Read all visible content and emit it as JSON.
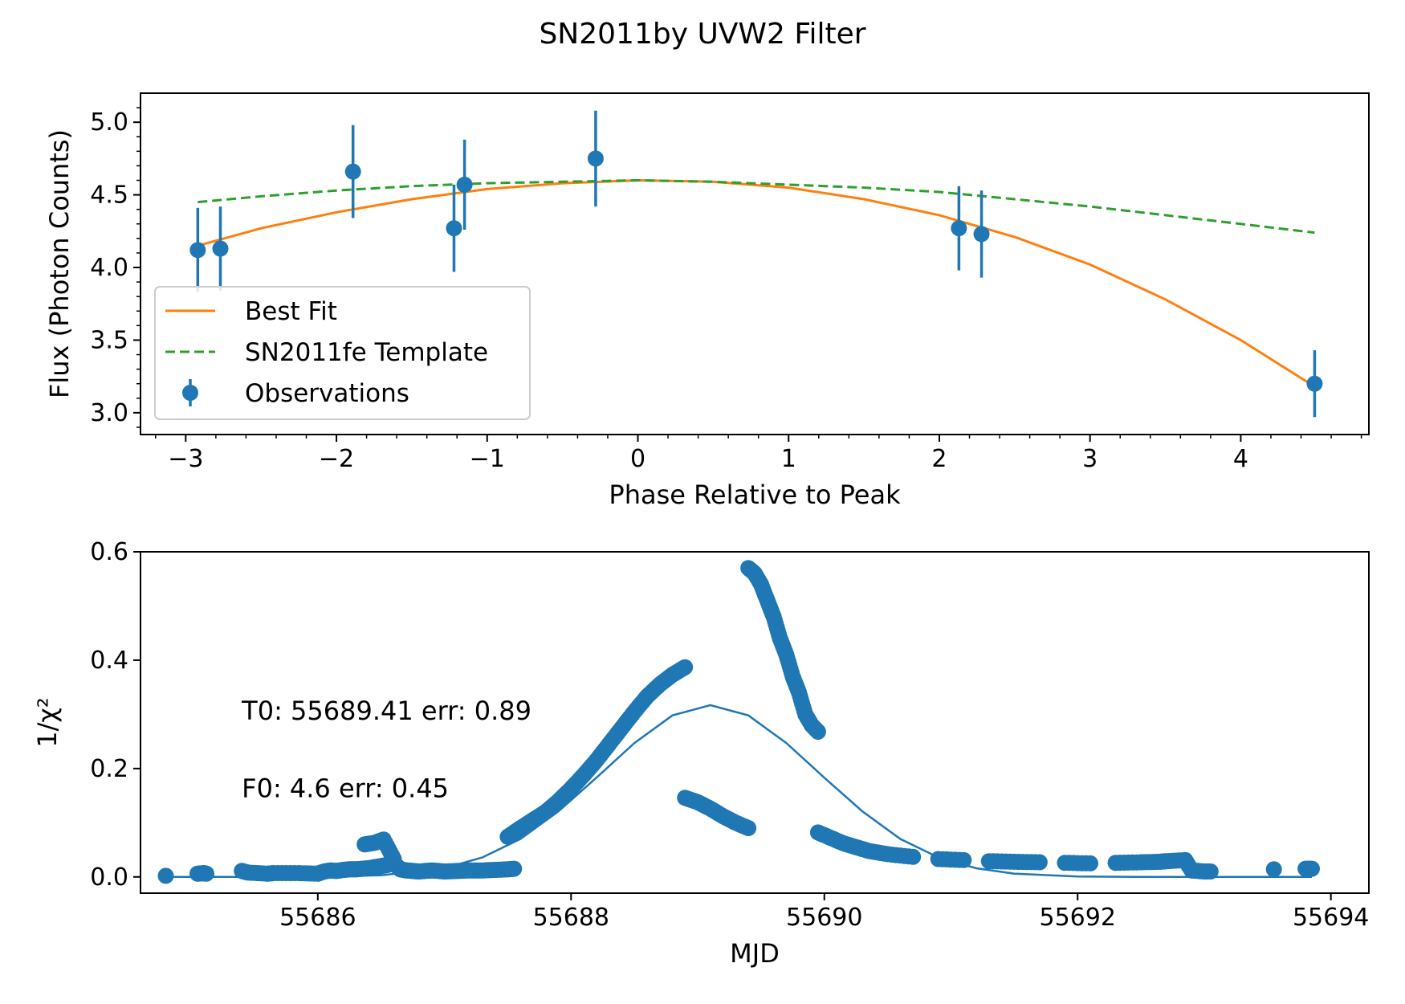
{
  "title": "SN2011by UVW2 Filter",
  "colors": {
    "observations": "#1f77b4",
    "best_fit": "#ff7f0e",
    "template": "#2ca02c",
    "scan": "#1f77b4"
  },
  "chart_data": [
    {
      "type": "scatter",
      "xlabel": "Phase Relative to Peak",
      "ylabel": "Flux (Photon Counts)",
      "xlim": [
        -3.3,
        4.85
      ],
      "ylim": [
        2.85,
        5.2
      ],
      "xticks": [
        -3,
        -2,
        -1,
        0,
        1,
        2,
        3,
        4
      ],
      "xtick_labels": [
        "−3",
        "−2",
        "−1",
        "0",
        "1",
        "2",
        "3",
        "4"
      ],
      "yticks": [
        3.0,
        3.5,
        4.0,
        4.5,
        5.0
      ],
      "ytick_labels": [
        "3.0",
        "3.5",
        "4.0",
        "4.5",
        "5.0"
      ],
      "legend_position": "lower-left",
      "legend": [
        {
          "label": "Best Fit",
          "style": "solid",
          "color": "#ff7f0e"
        },
        {
          "label": "SN2011fe Template",
          "style": "dashed",
          "color": "#2ca02c"
        },
        {
          "label": "Observations",
          "style": "errorbar",
          "color": "#1f77b4"
        }
      ],
      "series": [
        {
          "name": "Observations",
          "kind": "errorbar",
          "x": [
            -2.92,
            -2.77,
            -1.89,
            -1.22,
            -1.15,
            -0.28,
            2.13,
            2.28,
            4.49
          ],
          "y": [
            4.12,
            4.13,
            4.66,
            4.27,
            4.57,
            4.75,
            4.27,
            4.23,
            3.2
          ],
          "yerr": [
            0.29,
            0.29,
            0.32,
            0.3,
            0.31,
            0.33,
            0.29,
            0.3,
            0.23
          ]
        },
        {
          "name": "Best Fit",
          "kind": "line",
          "style": "solid",
          "x": [
            -2.92,
            -2.5,
            -2.0,
            -1.5,
            -1.0,
            -0.5,
            0.0,
            0.5,
            1.0,
            1.5,
            2.0,
            2.5,
            3.0,
            3.5,
            4.0,
            4.49
          ],
          "y": [
            4.15,
            4.27,
            4.38,
            4.47,
            4.54,
            4.58,
            4.6,
            4.59,
            4.55,
            4.47,
            4.36,
            4.21,
            4.02,
            3.78,
            3.5,
            3.18
          ]
        },
        {
          "name": "SN2011fe Template",
          "kind": "line",
          "style": "dashed",
          "x": [
            -2.92,
            -2.5,
            -2.0,
            -1.5,
            -1.0,
            -0.5,
            0.0,
            0.5,
            1.0,
            1.5,
            2.0,
            2.5,
            3.0,
            3.5,
            4.0,
            4.49
          ],
          "y": [
            4.45,
            4.49,
            4.53,
            4.56,
            4.58,
            4.59,
            4.6,
            4.59,
            4.57,
            4.55,
            4.52,
            4.47,
            4.42,
            4.36,
            4.3,
            4.24
          ]
        }
      ]
    },
    {
      "type": "scatter",
      "xlabel": "MJD",
      "ylabel": "1/χ²",
      "xlim": [
        55684.6,
        55694.3
      ],
      "ylim": [
        -0.03,
        0.6
      ],
      "xticks": [
        55686,
        55688,
        55690,
        55692,
        55694
      ],
      "xtick_labels": [
        "55686",
        "55688",
        "55690",
        "55692",
        "55694"
      ],
      "yticks": [
        0.0,
        0.2,
        0.4,
        0.6
      ],
      "ytick_labels": [
        "0.0",
        "0.2",
        "0.4",
        "0.6"
      ],
      "annotations": [
        {
          "text": "T0: 55689.41 err: 0.89",
          "x": 55685.4,
          "y": 0.29
        },
        {
          "text": "F0: 4.6 err: 0.45",
          "x": 55685.4,
          "y": 0.147
        }
      ],
      "series": [
        {
          "name": "scan",
          "kind": "scatter",
          "x": [
            55684.8,
            55685.05,
            55685.1,
            55685.12,
            55685.4,
            55685.45,
            55685.6,
            55685.65,
            55685.85,
            55686.0,
            55686.05,
            55686.1,
            55686.15,
            55686.2,
            55686.25,
            55686.3,
            55686.35,
            55686.4,
            55686.45,
            55686.5,
            55686.55,
            55686.6,
            55686.65,
            55686.7,
            55686.75,
            55686.8,
            55686.9,
            55687.0,
            55687.1,
            55687.2,
            55687.3,
            55687.4,
            55687.5,
            55687.55,
            55686.37,
            55686.45,
            55686.52,
            55686.6,
            55687.5,
            55687.6,
            55687.7,
            55687.8,
            55687.9,
            55688.0,
            55688.1,
            55688.2,
            55688.3,
            55688.4,
            55688.5,
            55688.6,
            55688.7,
            55688.8,
            55688.9,
            55689.4,
            55689.45,
            55689.5,
            55689.55,
            55689.6,
            55689.65,
            55689.7,
            55689.75,
            55689.8,
            55689.85,
            55689.9,
            55689.95,
            55688.9,
            55689.0,
            55689.1,
            55689.2,
            55689.3,
            55689.4,
            55689.95,
            55690.05,
            55690.15,
            55690.25,
            55690.35,
            55690.5,
            55690.7,
            55690.9,
            55691.1,
            55691.3,
            55691.5,
            55691.7,
            55691.9,
            55692.1,
            55692.3,
            55692.5,
            55692.65,
            55692.7,
            55692.85,
            55692.9,
            55693.0,
            55693.05,
            55693.55,
            55693.8,
            55693.85
          ],
          "y": [
            0.002,
            0.006,
            0.007,
            0.006,
            0.011,
            0.008,
            0.006,
            0.007,
            0.007,
            0.006,
            0.01,
            0.012,
            0.011,
            0.013,
            0.014,
            0.014,
            0.015,
            0.016,
            0.018,
            0.02,
            0.022,
            0.026,
            0.014,
            0.012,
            0.011,
            0.01,
            0.012,
            0.01,
            0.011,
            0.012,
            0.012,
            0.013,
            0.014,
            0.015,
            0.06,
            0.063,
            0.069,
            0.033,
            0.074,
            0.09,
            0.105,
            0.12,
            0.14,
            0.163,
            0.188,
            0.215,
            0.245,
            0.275,
            0.305,
            0.333,
            0.355,
            0.373,
            0.387,
            0.57,
            0.56,
            0.54,
            0.51,
            0.48,
            0.44,
            0.41,
            0.37,
            0.34,
            0.3,
            0.28,
            0.268,
            0.146,
            0.138,
            0.126,
            0.112,
            0.1,
            0.09,
            0.082,
            0.072,
            0.062,
            0.055,
            0.048,
            0.042,
            0.037,
            0.033,
            0.031,
            0.029,
            0.028,
            0.027,
            0.026,
            0.025,
            0.026,
            0.027,
            0.028,
            0.029,
            0.031,
            0.012,
            0.01,
            0.01,
            0.014,
            0.015,
            0.015
          ]
        },
        {
          "name": "gaussian",
          "kind": "line",
          "x": [
            55684.8,
            55685.5,
            55686.0,
            55686.5,
            55687.0,
            55687.3,
            55687.6,
            55687.9,
            55688.2,
            55688.5,
            55688.8,
            55689.1,
            55689.4,
            55689.7,
            55690.0,
            55690.3,
            55690.6,
            55690.9,
            55691.2,
            55691.5,
            55692.0,
            55692.5,
            55693.0,
            55693.5,
            55693.85
          ],
          "y": [
            0.0,
            0.0,
            0.0005,
            0.003,
            0.016,
            0.036,
            0.07,
            0.121,
            0.183,
            0.247,
            0.298,
            0.317,
            0.298,
            0.247,
            0.183,
            0.121,
            0.07,
            0.036,
            0.016,
            0.006,
            0.0007,
            0.0,
            0.0,
            0.0,
            0.0
          ]
        }
      ]
    }
  ]
}
